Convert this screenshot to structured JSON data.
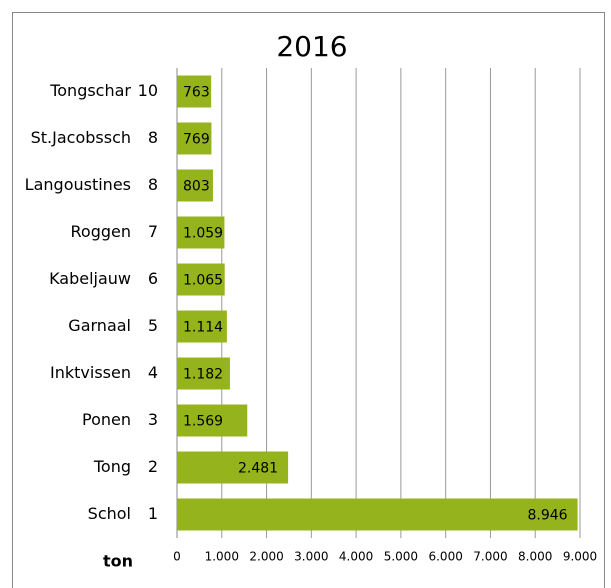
{
  "chart_data": {
    "type": "barh",
    "title": "2016",
    "categories": [
      "Tongschar",
      "St.Jacobssch",
      "Langoustines",
      "Roggen",
      "Kabeljauw",
      "Garnaal",
      "Inktvissen",
      "Ponen",
      "Tong",
      "Schol"
    ],
    "ranks": [
      10,
      8,
      8,
      7,
      6,
      5,
      4,
      3,
      2,
      1
    ],
    "values": [
      763,
      769,
      803,
      1059,
      1065,
      1114,
      1182,
      1569,
      2481,
      8946
    ],
    "value_labels": [
      "763",
      "769",
      "803",
      "1.059",
      "1.065",
      "1.114",
      "1.182",
      "1.569",
      "2.481",
      "8.946"
    ],
    "color": "#95b31c",
    "xlabel": "ton",
    "xlim": [
      0,
      9000
    ],
    "xticks": [
      0,
      {
        "value": 1000,
        "label": "1.000"
      },
      {
        "value": 2000,
        "label": "2.000"
      },
      {
        "value": 3000,
        "label": "3.000"
      },
      {
        "value": 4000,
        "label": "4.000"
      },
      {
        "value": 5000,
        "label": "5.000"
      },
      {
        "value": 6000,
        "label": "6.000"
      },
      {
        "value": 7000,
        "label": "7.000"
      },
      {
        "value": 8000,
        "label": "8.000"
      },
      {
        "value": 9000,
        "label": "9.000"
      }
    ],
    "grid": true
  }
}
